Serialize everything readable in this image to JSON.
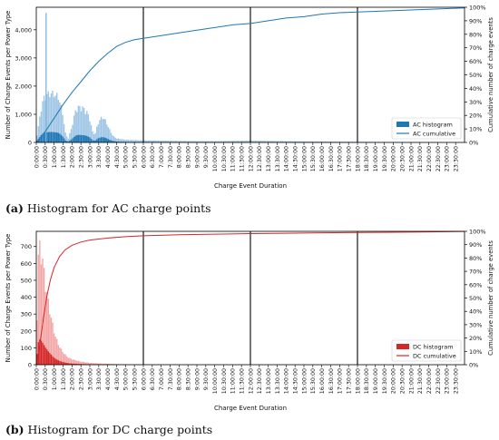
{
  "charts": [
    {
      "caption_prefix": "(a)",
      "caption_text": " Histogram for AC charge points"
    },
    {
      "caption_prefix": "(b)",
      "caption_text": " Histogram for DC charge points"
    }
  ],
  "chart_data": [
    {
      "type": "bar",
      "xlabel": "Charge Event Duration",
      "ylabel": "Number of Charge Events per Power Type",
      "y2label": "Cumulative number of charge events",
      "ylim": [
        0,
        4800
      ],
      "yticks": [
        0,
        1000,
        2000,
        3000,
        4000
      ],
      "ytick_labels": [
        "0",
        "1,000",
        "2,000",
        "3,000",
        "4,000"
      ],
      "y2lim": [
        0,
        100
      ],
      "y2ticks": [
        0,
        10,
        20,
        30,
        40,
        50,
        60,
        70,
        80,
        90,
        100
      ],
      "y2tick_labels": [
        "0%",
        "10%",
        "20%",
        "30%",
        "40%",
        "50%",
        "60%",
        "70%",
        "80%",
        "90%",
        "100%"
      ],
      "xlim_hours": [
        0,
        24
      ],
      "xtick_labels": [
        "0:00:00",
        "0:30:00",
        "1:00:00",
        "1:30:00",
        "2:00:00",
        "2:30:00",
        "3:00:00",
        "3:30:00",
        "4:00:00",
        "4:30:00",
        "5:00:00",
        "5:30:00",
        "6:00:00",
        "6:30:00",
        "7:00:00",
        "7:30:00",
        "8:00:00",
        "8:30:00",
        "9:00:00",
        "9:30:00",
        "10:00:00",
        "10:30:00",
        "11:00:00",
        "11:30:00",
        "12:00:00",
        "12:30:00",
        "13:00:00",
        "13:30:00",
        "14:00:00",
        "14:30:00",
        "15:00:00",
        "15:30:00",
        "16:00:00",
        "16:30:00",
        "17:00:00",
        "17:30:00",
        "18:00:00",
        "18:30:00",
        "19:00:00",
        "19:30:00",
        "20:00:00",
        "20:30:00",
        "21:00:00",
        "21:30:00",
        "22:00:00",
        "22:30:00",
        "23:00:00",
        "23:30:00"
      ],
      "vlines_hours": [
        6,
        12,
        18
      ],
      "color_hist": "#1f77b4",
      "color_cum": "#1f77b4",
      "hist_color_fill": "#7fb3dd",
      "legend_position": "lower-right",
      "series": [
        {
          "name": "AC histogram",
          "kind": "histogram",
          "x_hours": [
            0,
            0.15,
            0.3,
            0.45,
            0.6,
            0.75,
            0.9,
            1.05,
            1.2,
            1.35,
            1.5,
            1.65,
            1.8,
            2.0,
            2.2,
            2.4,
            2.6,
            2.8,
            3.0,
            3.15,
            3.3,
            3.45,
            3.6,
            3.75,
            3.9,
            4.1,
            4.3,
            4.5,
            5.0,
            6.0,
            7.0,
            8.0,
            9.0,
            10.0,
            11.0,
            12.0,
            13.0,
            14.0,
            15.0,
            16.0,
            17.0,
            18.0,
            19.0,
            20.0,
            22.0,
            23.9
          ],
          "values": [
            150,
            700,
            1400,
            1700,
            1800,
            1850,
            1850,
            1800,
            1750,
            1500,
            1000,
            300,
            150,
            600,
            1200,
            1350,
            1300,
            1200,
            900,
            400,
            300,
            700,
            900,
            950,
            800,
            500,
            250,
            150,
            100,
            80,
            70,
            60,
            50,
            50,
            60,
            70,
            60,
            50,
            40,
            35,
            30,
            25,
            20,
            15,
            10,
            5
          ],
          "spike_hours": 0.55,
          "spike_value": 4600
        },
        {
          "name": "AC cumulative",
          "kind": "line",
          "x_hours": [
            0,
            0.5,
            1.0,
            1.5,
            2.0,
            2.5,
            3.0,
            3.5,
            4.0,
            4.5,
            5.0,
            5.5,
            6.0,
            7.0,
            8.0,
            9.0,
            10.0,
            11.0,
            12.0,
            13.0,
            14.0,
            15.0,
            16.0,
            17.0,
            18.0,
            19.0,
            20.0,
            21.0,
            22.0,
            23.0,
            24.0
          ],
          "y_percent": [
            0,
            8,
            18,
            28,
            37,
            45,
            53,
            60,
            66,
            71,
            74,
            76,
            77,
            79,
            81,
            83,
            85,
            87,
            88,
            90,
            92,
            93,
            95,
            96,
            96.5,
            97,
            97.5,
            98,
            98.5,
            99,
            99.5
          ]
        }
      ]
    },
    {
      "type": "bar",
      "xlabel": "Charge Event Duration",
      "ylabel": "Number of Charge Events per Power Type",
      "y2label": "Cumulative number of charge events",
      "ylim": [
        0,
        790
      ],
      "yticks": [
        0,
        100,
        200,
        300,
        400,
        500,
        600,
        700
      ],
      "ytick_labels": [
        "0",
        "100",
        "200",
        "300",
        "400",
        "500",
        "600",
        "700"
      ],
      "y2lim": [
        0,
        100
      ],
      "y2ticks": [
        0,
        10,
        20,
        30,
        40,
        50,
        60,
        70,
        80,
        90,
        100
      ],
      "y2tick_labels": [
        "0%",
        "10%",
        "20%",
        "30%",
        "40%",
        "50%",
        "60%",
        "70%",
        "80%",
        "90%",
        "100%"
      ],
      "xlim_hours": [
        0,
        24
      ],
      "xtick_labels": [
        "0:00:00",
        "0:30:00",
        "1:00:00",
        "1:30:00",
        "2:00:00",
        "2:30:00",
        "3:00:00",
        "3:30:00",
        "4:00:00",
        "4:30:00",
        "5:00:00",
        "5:30:00",
        "6:00:00",
        "6:30:00",
        "7:00:00",
        "7:30:00",
        "8:00:00",
        "8:30:00",
        "9:00:00",
        "9:30:00",
        "10:00:00",
        "10:30:00",
        "11:00:00",
        "11:30:00",
        "12:00:00",
        "12:30:00",
        "13:00:00",
        "13:30:00",
        "14:00:00",
        "14:30:00",
        "15:00:00",
        "15:30:00",
        "16:00:00",
        "16:30:00",
        "17:00:00",
        "17:30:00",
        "18:00:00",
        "18:30:00",
        "19:00:00",
        "19:30:00",
        "20:00:00",
        "20:30:00",
        "21:00:00",
        "21:30:00",
        "22:00:00",
        "22:30:00",
        "23:00:00",
        "23:30:00"
      ],
      "vlines_hours": [
        6,
        12,
        18
      ],
      "color_hist": "#d62728",
      "color_cum": "#d62728",
      "hist_color_fill": "#ee8a8a",
      "legend_position": "lower-right",
      "series": [
        {
          "name": "DC histogram",
          "kind": "histogram",
          "x_hours": [
            0,
            0.1,
            0.2,
            0.3,
            0.4,
            0.5,
            0.6,
            0.7,
            0.8,
            0.9,
            1.0,
            1.1,
            1.2,
            1.3,
            1.4,
            1.5,
            1.6,
            1.7,
            1.8,
            2.0,
            2.2,
            2.4,
            2.6,
            2.8,
            3.0,
            3.5,
            4.0,
            4.5,
            5.0,
            6.0,
            8.0,
            12.0,
            18.0,
            23.9
          ],
          "values": [
            100,
            650,
            750,
            700,
            620,
            520,
            450,
            380,
            320,
            260,
            210,
            170,
            140,
            115,
            95,
            80,
            65,
            55,
            45,
            35,
            28,
            22,
            18,
            15,
            12,
            8,
            6,
            4,
            3,
            2,
            1,
            1,
            0,
            0
          ]
        },
        {
          "name": "DC cumulative",
          "kind": "line",
          "x_hours": [
            0,
            0.2,
            0.4,
            0.6,
            0.8,
            1.0,
            1.3,
            1.6,
            2.0,
            2.5,
            3.0,
            4.0,
            5.0,
            6.0,
            8.0,
            10.0,
            12.0,
            14.0,
            16.0,
            18.0,
            20.0,
            22.0,
            24.0
          ],
          "y_percent": [
            0,
            15,
            35,
            52,
            64,
            73,
            81,
            86,
            89.5,
            92,
            93.5,
            95,
            96,
            96.7,
            97.4,
            97.9,
            98.3,
            98.6,
            98.9,
            99.1,
            99.3,
            99.6,
            99.9
          ]
        }
      ]
    }
  ]
}
